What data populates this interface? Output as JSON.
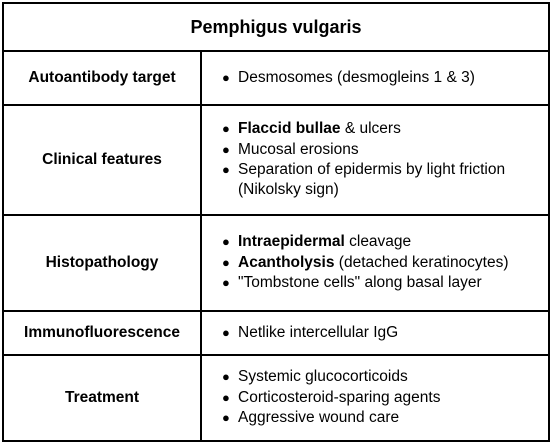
{
  "title": "Pemphigus vulgaris",
  "rows": [
    {
      "label": "Autoantibody target",
      "items": [
        {
          "bold": "",
          "text": "Desmosomes (desmogleins 1 & 3)"
        }
      ]
    },
    {
      "label": "Clinical features",
      "items": [
        {
          "bold": "Flaccid bullae",
          "text": " & ulcers"
        },
        {
          "bold": "",
          "text": "Mucosal erosions"
        },
        {
          "bold": "",
          "text": "Separation of epidermis by light friction (Nikolsky sign)"
        }
      ]
    },
    {
      "label": "Histopathology",
      "items": [
        {
          "bold": "Intraepidermal",
          "text": " cleavage"
        },
        {
          "bold": "Acantholysis",
          "text": " (detached keratinocytes)"
        },
        {
          "bold": "",
          "text": "\"Tombstone cells\" along basal layer"
        }
      ]
    },
    {
      "label": "Immunofluorescence",
      "items": [
        {
          "bold": "",
          "text": "Netlike intercellular IgG"
        }
      ]
    },
    {
      "label": "Treatment",
      "items": [
        {
          "bold": "",
          "text": "Systemic glucocorticoids"
        },
        {
          "bold": "",
          "text": "Corticosteroid-sparing agents"
        },
        {
          "bold": "",
          "text": "Aggressive wound care"
        }
      ]
    }
  ]
}
